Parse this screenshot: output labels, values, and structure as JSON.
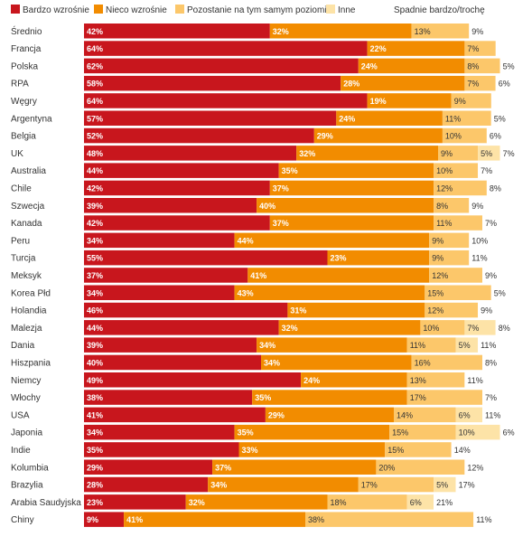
{
  "chart_data": {
    "type": "bar",
    "orientation": "horizontal",
    "stacked": true,
    "value_suffix": "%",
    "legend_position": "top-left",
    "series": [
      {
        "name": "Bardzo wzrośnie",
        "color": "#c8161d"
      },
      {
        "name": "Nieco wzrośnie",
        "color": "#f28c00"
      },
      {
        "name": "Pozostanie na tym samym poziomie",
        "color": "#fcc76a"
      },
      {
        "name": "Inne",
        "color": "#fde3a7"
      },
      {
        "name": "Spadnie bardzo/trochę",
        "color": "#ffffff"
      }
    ],
    "rows": [
      {
        "country": "Średnio",
        "values": [
          42,
          32,
          13,
          null,
          9
        ]
      },
      {
        "country": "Francja",
        "values": [
          64,
          22,
          7,
          null,
          null
        ]
      },
      {
        "country": "Polska",
        "values": [
          62,
          24,
          8,
          null,
          5
        ]
      },
      {
        "country": "RPA",
        "values": [
          58,
          28,
          7,
          null,
          6
        ]
      },
      {
        "country": "Węgry",
        "values": [
          64,
          19,
          9,
          null,
          null
        ]
      },
      {
        "country": "Argentyna",
        "values": [
          57,
          24,
          11,
          null,
          5
        ]
      },
      {
        "country": "Belgia",
        "values": [
          52,
          29,
          10,
          null,
          6
        ]
      },
      {
        "country": "UK",
        "values": [
          48,
          32,
          9,
          5,
          7
        ]
      },
      {
        "country": "Australia",
        "values": [
          44,
          35,
          10,
          null,
          7
        ]
      },
      {
        "country": "Chile",
        "values": [
          42,
          37,
          12,
          null,
          8
        ]
      },
      {
        "country": "Szwecja",
        "values": [
          39,
          40,
          8,
          null,
          9
        ]
      },
      {
        "country": "Kanada",
        "values": [
          42,
          37,
          11,
          null,
          7
        ]
      },
      {
        "country": "Peru",
        "values": [
          34,
          44,
          9,
          null,
          10
        ]
      },
      {
        "country": "Turcja",
        "values": [
          55,
          23,
          9,
          null,
          11
        ]
      },
      {
        "country": "Meksyk",
        "values": [
          37,
          41,
          12,
          null,
          9
        ]
      },
      {
        "country": "Korea Płd",
        "values": [
          34,
          43,
          15,
          null,
          5
        ]
      },
      {
        "country": "Holandia",
        "values": [
          46,
          31,
          12,
          null,
          9
        ]
      },
      {
        "country": "Malezja",
        "values": [
          44,
          32,
          10,
          7,
          8
        ]
      },
      {
        "country": "Dania",
        "values": [
          39,
          34,
          11,
          5,
          11
        ]
      },
      {
        "country": "Hiszpania",
        "values": [
          40,
          34,
          16,
          null,
          8
        ]
      },
      {
        "country": "Niemcy",
        "values": [
          49,
          24,
          13,
          null,
          11
        ]
      },
      {
        "country": "Włochy",
        "values": [
          38,
          35,
          17,
          null,
          7
        ]
      },
      {
        "country": "USA",
        "values": [
          41,
          29,
          14,
          6,
          11
        ]
      },
      {
        "country": "Japonia",
        "values": [
          34,
          35,
          15,
          10,
          6
        ]
      },
      {
        "country": "Indie",
        "values": [
          35,
          33,
          15,
          null,
          14
        ]
      },
      {
        "country": "Kolumbia",
        "values": [
          29,
          37,
          20,
          null,
          12
        ]
      },
      {
        "country": "Brazylia",
        "values": [
          28,
          34,
          17,
          5,
          17
        ]
      },
      {
        "country": "Arabia Saudyjska",
        "values": [
          23,
          32,
          18,
          6,
          21
        ]
      },
      {
        "country": "Chiny",
        "values": [
          9,
          41,
          38,
          null,
          11
        ]
      }
    ]
  }
}
